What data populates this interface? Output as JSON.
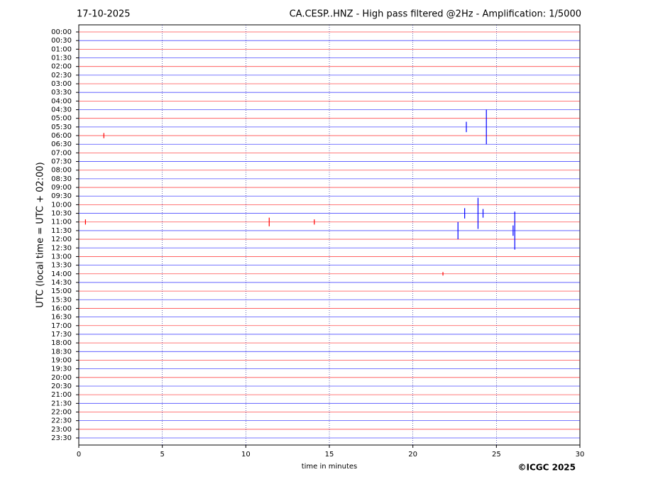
{
  "chart_data": {
    "type": "helicorder",
    "title_left": "17-10-2025",
    "title": "CA.CESP..HNZ - High pass filtered @2Hz - Amplification: 1/5000",
    "xlabel": "time in minutes",
    "ylabel": "UTC (local time = UTC + 02:00)",
    "copyright": "©ICGC 2025",
    "categories": [
      "00:00",
      "00:30",
      "01:00",
      "01:30",
      "02:00",
      "02:30",
      "03:00",
      "03:30",
      "04:00",
      "04:30",
      "05:00",
      "05:30",
      "06:00",
      "06:30",
      "07:00",
      "07:30",
      "08:00",
      "08:30",
      "09:00",
      "09:30",
      "10:00",
      "10:30",
      "11:00",
      "11:30",
      "12:00",
      "12:30",
      "13:00",
      "13:30",
      "14:00",
      "14:30",
      "15:00",
      "15:30",
      "16:00",
      "16:30",
      "17:00",
      "17:30",
      "18:00",
      "18:30",
      "19:00",
      "19:30",
      "20:00",
      "20:30",
      "21:00",
      "21:30",
      "22:00",
      "22:30",
      "23:00",
      "23:30"
    ],
    "colors": [
      "#ff0000",
      "#0000ff"
    ],
    "xlim": [
      0,
      30
    ],
    "xticks": [
      0,
      5,
      10,
      15,
      20,
      25,
      30
    ],
    "grid": true,
    "events": [
      {
        "row": 11,
        "minute": 23.2,
        "amplitude": 0.6
      },
      {
        "row": 11,
        "minute": 24.4,
        "amplitude": 2.0
      },
      {
        "row": 12,
        "minute": 1.5,
        "amplitude": 0.3
      },
      {
        "row": 21,
        "minute": 23.1,
        "amplitude": 0.6
      },
      {
        "row": 21,
        "minute": 23.9,
        "amplitude": 1.8
      },
      {
        "row": 21,
        "minute": 24.2,
        "amplitude": 0.5
      },
      {
        "row": 22,
        "minute": 0.4,
        "amplitude": 0.3
      },
      {
        "row": 22,
        "minute": 11.4,
        "amplitude": 0.5
      },
      {
        "row": 22,
        "minute": 14.1,
        "amplitude": 0.3
      },
      {
        "row": 23,
        "minute": 22.7,
        "amplitude": 1.0
      },
      {
        "row": 23,
        "minute": 26.0,
        "amplitude": 0.6
      },
      {
        "row": 23,
        "minute": 26.1,
        "amplitude": 2.2
      },
      {
        "row": 28,
        "minute": 21.8,
        "amplitude": 0.2
      }
    ]
  }
}
